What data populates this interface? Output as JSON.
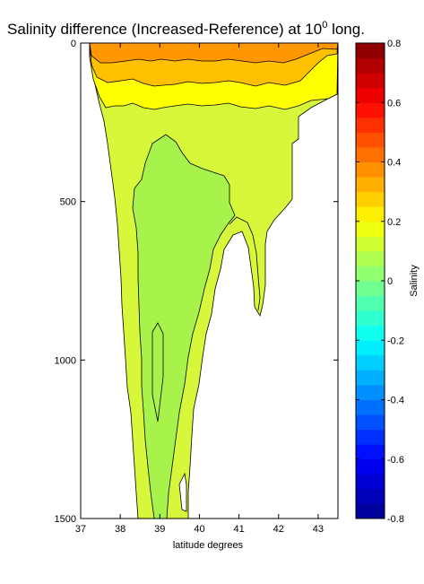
{
  "chart_data": {
    "type": "contour",
    "title": {
      "main": "Salinity difference (Increased-Reference) at 10",
      "superscript": "0",
      "suffix": " long."
    },
    "xlabel": "latitude degrees",
    "ylabel": "",
    "colorbar_label": "Salinity",
    "xlim": [
      37,
      43.5
    ],
    "ylim": [
      0,
      1500
    ],
    "y_reversed": true,
    "x_ticks": [
      "37",
      "38",
      "39",
      "40",
      "41",
      "42",
      "43"
    ],
    "y_ticks": [
      "0",
      "500",
      "1000",
      "1500"
    ],
    "colorbar_range": [
      -0.8,
      0.8
    ],
    "colorbar_ticks": [
      "0.8",
      "0.6",
      "0.4",
      "0.2",
      "0",
      "-0.2",
      "-0.4",
      "-0.6",
      "-0.8"
    ],
    "colormap": "jet",
    "colormap_colors": [
      "#00008F",
      "#0000FF",
      "#0080FF",
      "#00FFFF",
      "#80FF80",
      "#FFFF00",
      "#FF8000",
      "#FF0000",
      "#800000"
    ],
    "grid": false,
    "field_levels": {
      "surface_band": 0.35,
      "upper_band": 0.25,
      "main_field": 0.17,
      "deep_tongue": 0.1
    }
  }
}
